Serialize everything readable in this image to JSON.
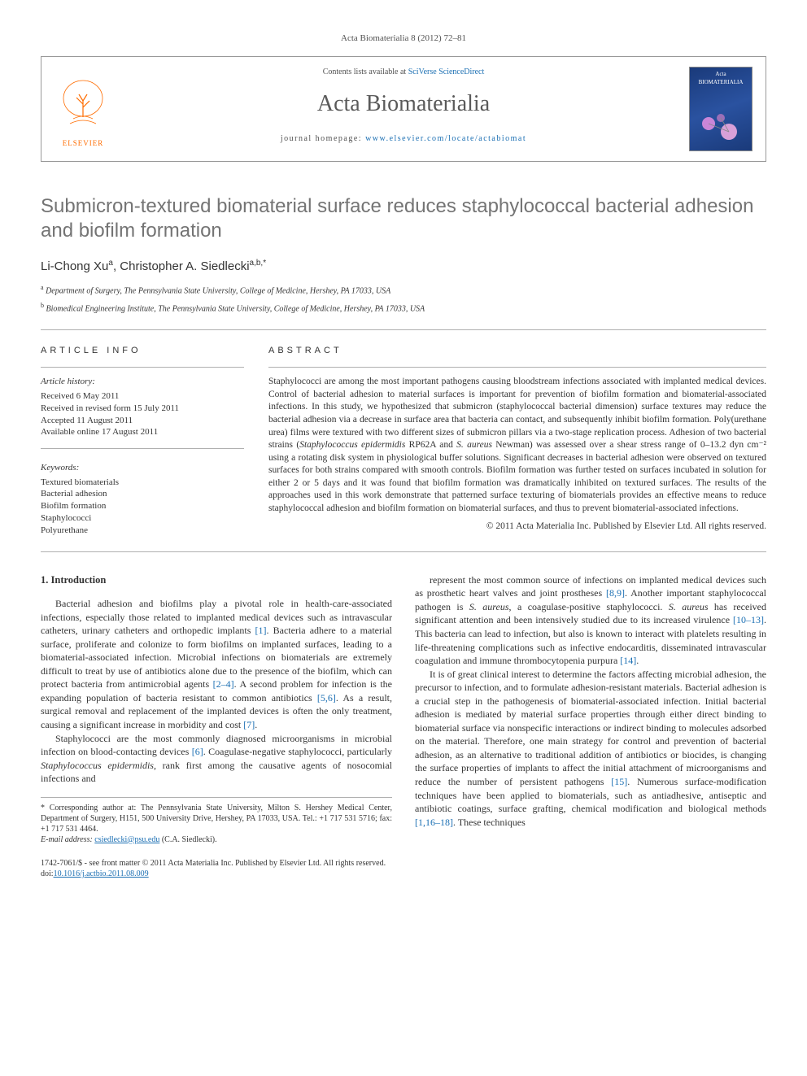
{
  "journal_ref": "Acta Biomaterialia 8 (2012) 72–81",
  "header": {
    "contents_prefix": "Contents lists available at ",
    "contents_link": "SciVerse ScienceDirect",
    "journal_name": "Acta Biomaterialia",
    "homepage_prefix": "journal homepage: ",
    "homepage_link": "www.elsevier.com/locate/actabiomat",
    "publisher": "ELSEVIER",
    "cover_title": "Acta BIOMATERIALIA"
  },
  "title": "Submicron-textured biomaterial surface reduces staphylococcal bacterial adhesion and biofilm formation",
  "authors_html": "Li-Chong Xu<span class='sup'>a</span>, Christopher A. Siedlecki<span class='sup'>a,b,</span><span class='sup'>*</span>",
  "affiliations": [
    {
      "sup": "a",
      "text": "Department of Surgery, The Pennsylvania State University, College of Medicine, Hershey, PA 17033, USA"
    },
    {
      "sup": "b",
      "text": "Biomedical Engineering Institute, The Pennsylvania State University, College of Medicine, Hershey, PA 17033, USA"
    }
  ],
  "info": {
    "label": "ARTICLE INFO",
    "history_label": "Article history:",
    "history": [
      "Received 6 May 2011",
      "Received in revised form 15 July 2011",
      "Accepted 11 August 2011",
      "Available online 17 August 2011"
    ],
    "keywords_label": "Keywords:",
    "keywords": [
      "Textured biomaterials",
      "Bacterial adhesion",
      "Biofilm formation",
      "Staphylococci",
      "Polyurethane"
    ]
  },
  "abstract": {
    "label": "ABSTRACT",
    "text": "Staphylococci are among the most important pathogens causing bloodstream infections associated with implanted medical devices. Control of bacterial adhesion to material surfaces is important for prevention of biofilm formation and biomaterial-associated infections. In this study, we hypothesized that submicron (staphylococcal bacterial dimension) surface textures may reduce the bacterial adhesion via a decrease in surface area that bacteria can contact, and subsequently inhibit biofilm formation. Poly(urethane urea) films were textured with two different sizes of submicron pillars via a two-stage replication process. Adhesion of two bacterial strains (Staphylococcus epidermidis RP62A and S. aureus Newman) was assessed over a shear stress range of 0–13.2 dyn cm⁻² using a rotating disk system in physiological buffer solutions. Significant decreases in bacterial adhesion were observed on textured surfaces for both strains compared with smooth controls. Biofilm formation was further tested on surfaces incubated in solution for either 2 or 5 days and it was found that biofilm formation was dramatically inhibited on textured surfaces. The results of the approaches used in this work demonstrate that patterned surface texturing of biomaterials provides an effective means to reduce staphylococcal adhesion and biofilm formation on biomaterial surfaces, and thus to prevent biomaterial-associated infections.",
    "copyright": "© 2011 Acta Materialia Inc. Published by Elsevier Ltd. All rights reserved."
  },
  "body": {
    "heading": "1. Introduction",
    "p1": "Bacterial adhesion and biofilms play a pivotal role in health-care-associated infections, especially those related to implanted medical devices such as intravascular catheters, urinary catheters and orthopedic implants [1]. Bacteria adhere to a material surface, proliferate and colonize to form biofilms on implanted surfaces, leading to a biomaterial-associated infection. Microbial infections on biomaterials are extremely difficult to treat by use of antibiotics alone due to the presence of the biofilm, which can protect bacteria from antimicrobial agents [2–4]. A second problem for infection is the expanding population of bacteria resistant to common antibiotics [5,6]. As a result, surgical removal and replacement of the implanted devices is often the only treatment, causing a significant increase in morbidity and cost [7].",
    "p2": "Staphylococci are the most commonly diagnosed microorganisms in microbial infection on blood-contacting devices [6]. Coagulase-negative staphylococci, particularly Staphylococcus epidermidis, rank first among the causative agents of nosocomial infections and",
    "p3": "represent the most common source of infections on implanted medical devices such as prosthetic heart valves and joint prostheses [8,9]. Another important staphylococcal pathogen is S. aureus, a coagulase-positive staphylococci. S. aureus has received significant attention and been intensively studied due to its increased virulence [10–13]. This bacteria can lead to infection, but also is known to interact with platelets resulting in life-threatening complications such as infective endocarditis, disseminated intravascular coagulation and immune thrombocytopenia purpura [14].",
    "p4": "It is of great clinical interest to determine the factors affecting microbial adhesion, the precursor to infection, and to formulate adhesion-resistant materials. Bacterial adhesion is a crucial step in the pathogenesis of biomaterial-associated infection. Initial bacterial adhesion is mediated by material surface properties through either direct binding to biomaterial surface via nonspecific interactions or indirect binding to molecules adsorbed on the material. Therefore, one main strategy for control and prevention of bacterial adhesion, as an alternative to traditional addition of antibiotics or biocides, is changing the surface properties of implants to affect the initial attachment of microorganisms and reduce the number of persistent pathogens [15]. Numerous surface-modification techniques have been applied to biomaterials, such as antiadhesive, antiseptic and antibiotic coatings, surface grafting, chemical modification and biological methods [1,16–18]. These techniques"
  },
  "corresponding": {
    "text": "* Corresponding author at: The Pennsylvania State University, Milton S. Hershey Medical Center, Department of Surgery, H151, 500 University Drive, Hershey, PA 17033, USA. Tel.: +1 717 531 5716; fax: +1 717 531 4464.",
    "email_label": "E-mail address:",
    "email": "csiedlecki@psu.edu",
    "email_suffix": "(C.A. Siedlecki)."
  },
  "footer": {
    "line1": "1742-7061/$ - see front matter © 2011 Acta Materialia Inc. Published by Elsevier Ltd. All rights reserved.",
    "line2": "doi:10.1016/j.actbio.2011.08.009"
  },
  "colors": {
    "link": "#1b6fb3",
    "title_gray": "#747474",
    "orange": "#ff6c00"
  }
}
